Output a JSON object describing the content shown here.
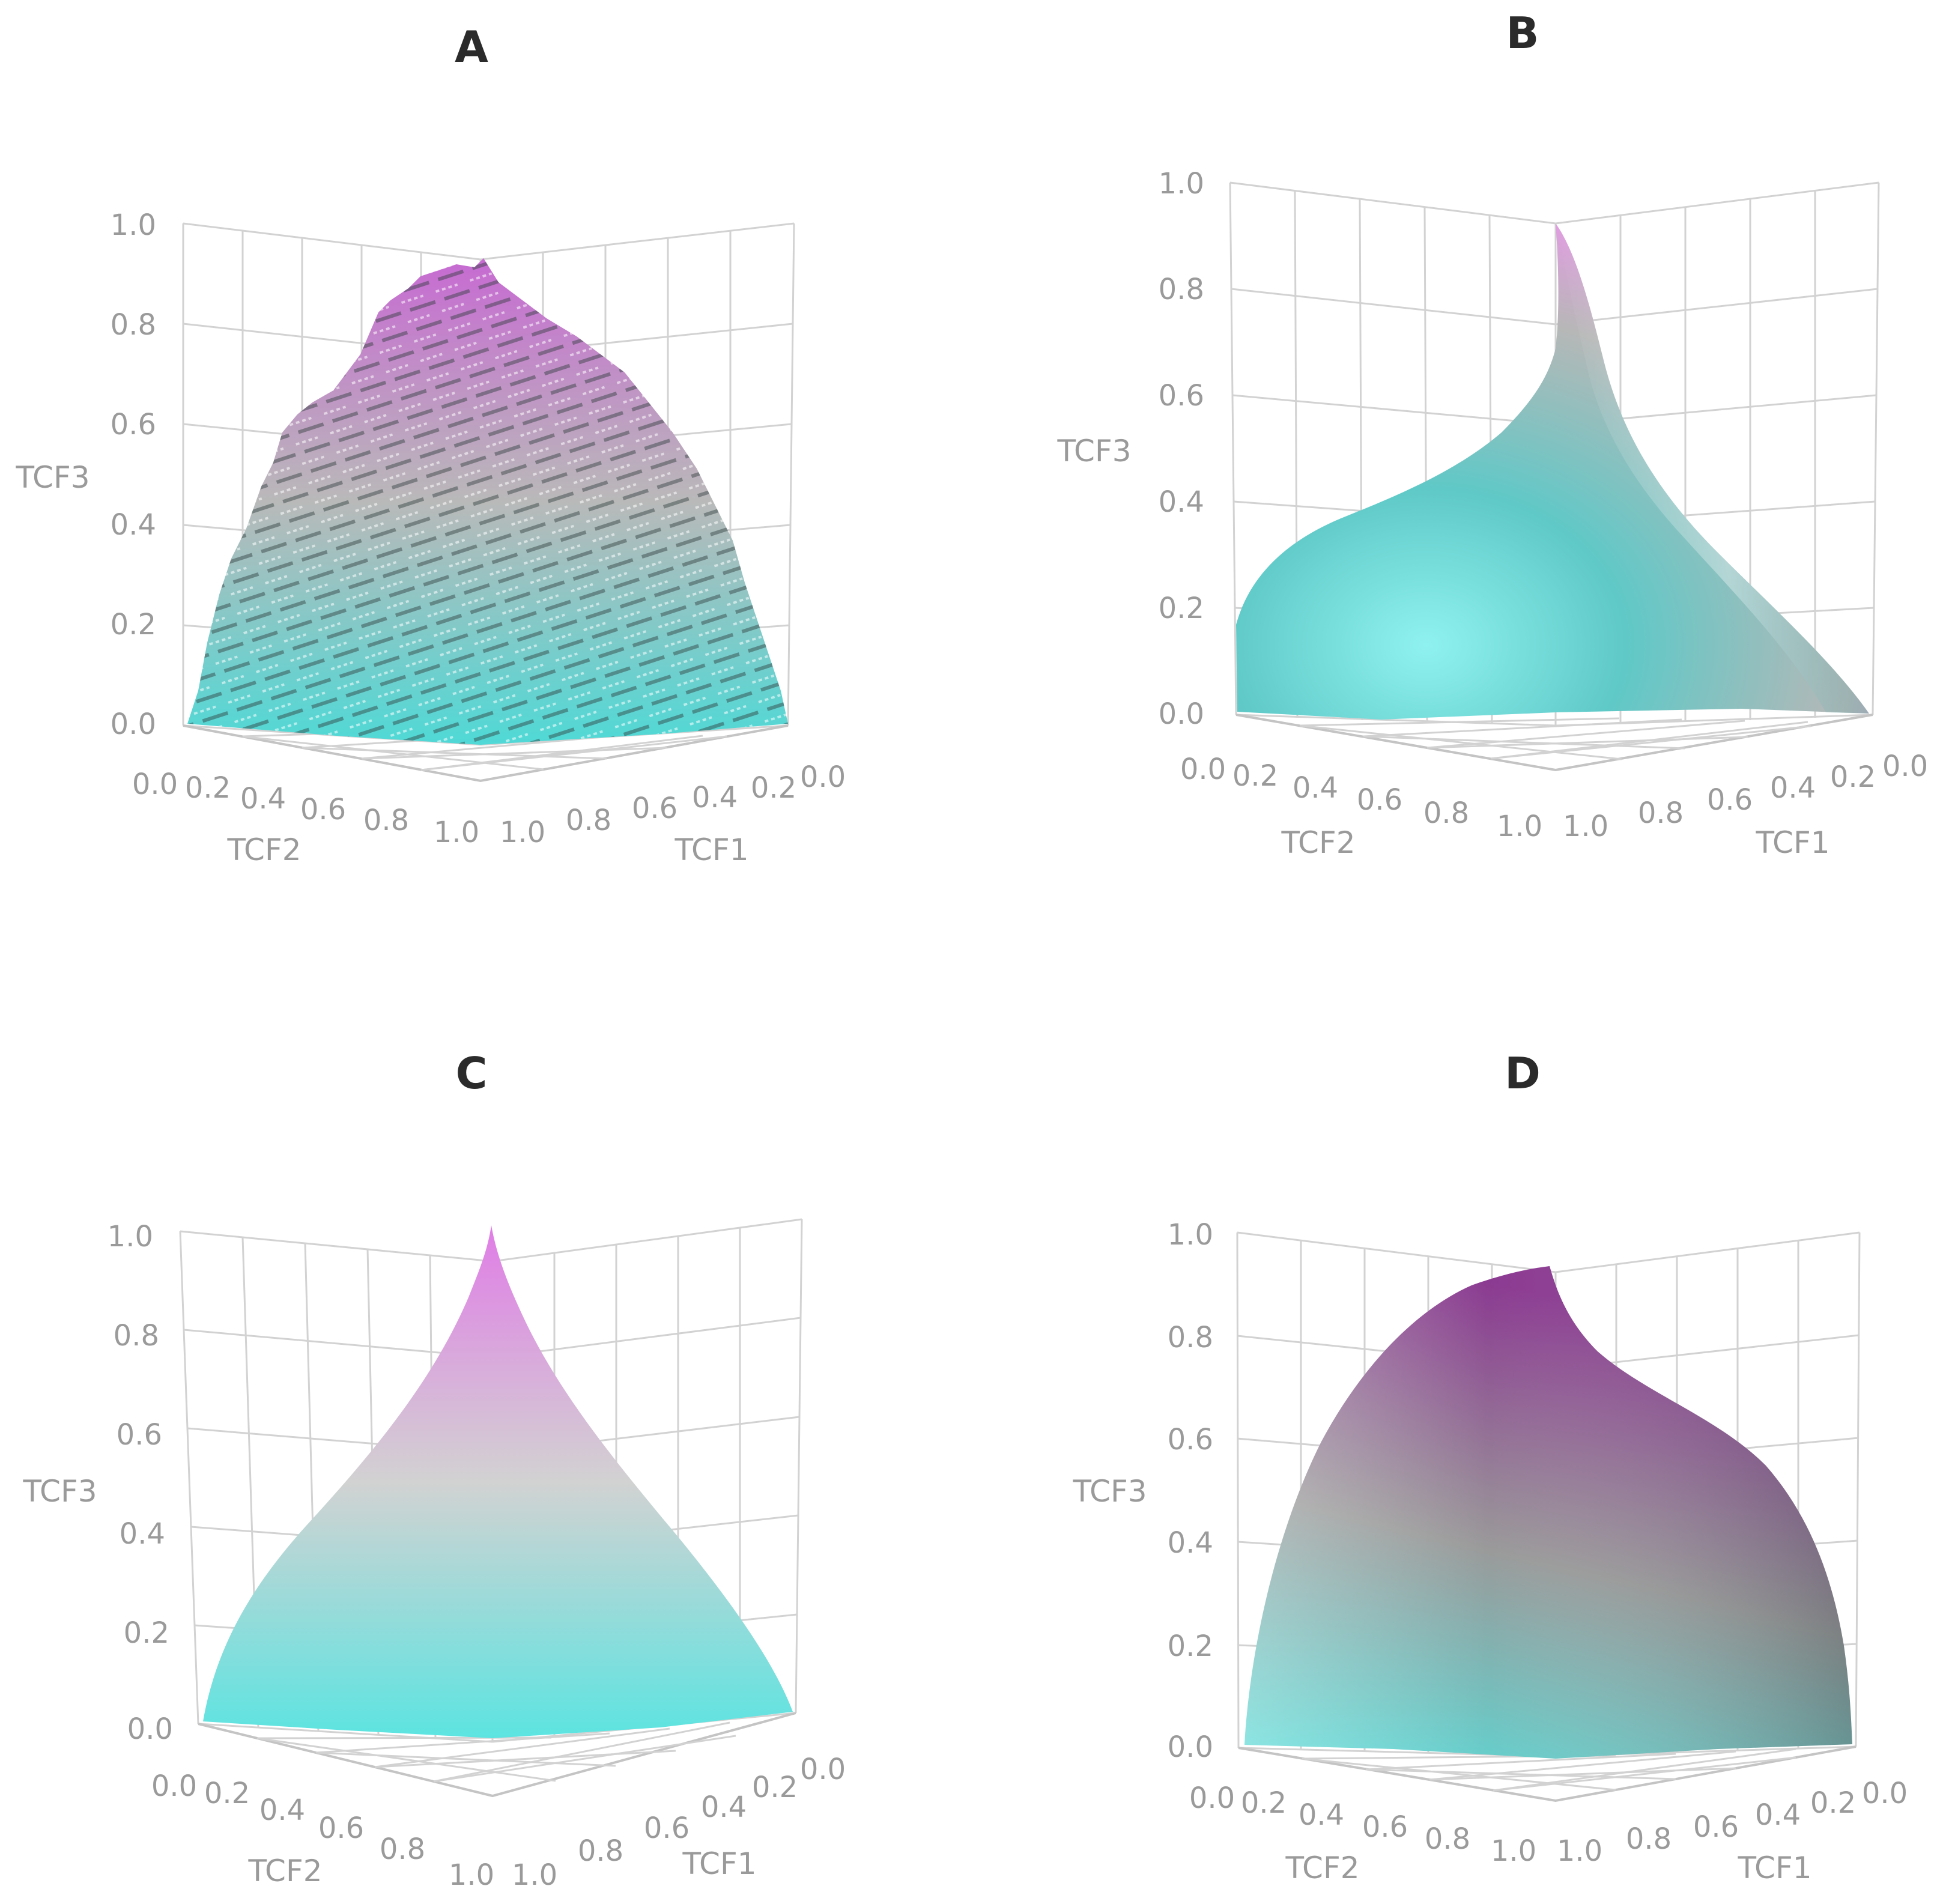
{
  "chart_data": [
    {
      "type": "surface3d",
      "panel": "A",
      "title": "A",
      "surface_style": "stepped",
      "xlabel": "TCF1",
      "ylabel": "TCF2",
      "zlabel": "TCF3",
      "xlim": [
        0,
        1
      ],
      "ylim": [
        0,
        1
      ],
      "zlim": [
        0,
        1
      ],
      "x_ticks": [
        "0.0",
        "0.2",
        "0.4",
        "0.6",
        "0.8",
        "1.0"
      ],
      "y_ticks": [
        "0.0",
        "0.2",
        "0.4",
        "0.6",
        "0.8",
        "1.0"
      ],
      "z_ticks": [
        "0.0",
        "0.2",
        "0.4",
        "0.6",
        "0.8",
        "1.0"
      ],
      "peak_z": 0.92,
      "colorscale": [
        "#4fd9d6",
        "#bfbfbf",
        "#cc6fd6"
      ]
    },
    {
      "type": "surface3d",
      "panel": "B",
      "title": "B",
      "surface_style": "smooth-ridge",
      "xlabel": "TCF1",
      "ylabel": "TCF2",
      "zlabel": "TCF3",
      "xlim": [
        0,
        1
      ],
      "ylim": [
        0,
        1
      ],
      "zlim": [
        0,
        1
      ],
      "x_ticks": [
        "0.0",
        "0.2",
        "0.4",
        "0.6",
        "0.8",
        "1.0"
      ],
      "y_ticks": [
        "0.0",
        "0.2",
        "0.4",
        "0.6",
        "0.8",
        "1.0"
      ],
      "z_ticks": [
        "0.0",
        "0.2",
        "0.4",
        "0.6",
        "0.8",
        "1.0"
      ],
      "peak_z": 0.93,
      "colorscale": [
        "#4fd9d6",
        "#bfbfbf",
        "#e59be6"
      ]
    },
    {
      "type": "surface3d",
      "panel": "C",
      "title": "C",
      "surface_style": "smooth-pyramid",
      "xlabel": "TCF1",
      "ylabel": "TCF2",
      "zlabel": "TCF3",
      "xlim": [
        0,
        1
      ],
      "ylim": [
        0,
        1
      ],
      "zlim": [
        0,
        1
      ],
      "x_ticks": [
        "0.0",
        "0.2",
        "0.4",
        "0.6",
        "0.8",
        "1.0"
      ],
      "y_ticks": [
        "0.0",
        "0.2",
        "0.4",
        "0.6",
        "0.8",
        "1.0"
      ],
      "z_ticks": [
        "0.0",
        "0.2",
        "0.4",
        "0.6",
        "0.8",
        "1.0"
      ],
      "peak_z": 1.0,
      "colorscale": [
        "#5ee3e0",
        "#cfcfcf",
        "#e07ee6"
      ]
    },
    {
      "type": "surface3d",
      "panel": "D",
      "title": "D",
      "surface_style": "smooth-dome",
      "xlabel": "TCF1",
      "ylabel": "TCF2",
      "zlabel": "TCF3",
      "xlim": [
        0,
        1
      ],
      "ylim": [
        0,
        1
      ],
      "zlim": [
        0,
        1
      ],
      "x_ticks": [
        "0.0",
        "0.2",
        "0.4",
        "0.6",
        "0.8",
        "1.0"
      ],
      "y_ticks": [
        "0.0",
        "0.2",
        "0.4",
        "0.6",
        "0.8",
        "1.0"
      ],
      "z_ticks": [
        "0.0",
        "0.2",
        "0.4",
        "0.6",
        "0.8",
        "1.0"
      ],
      "peak_z": 0.93,
      "colorscale": [
        "#54d3cf",
        "#9a9a9a",
        "#8e3d93"
      ]
    }
  ]
}
